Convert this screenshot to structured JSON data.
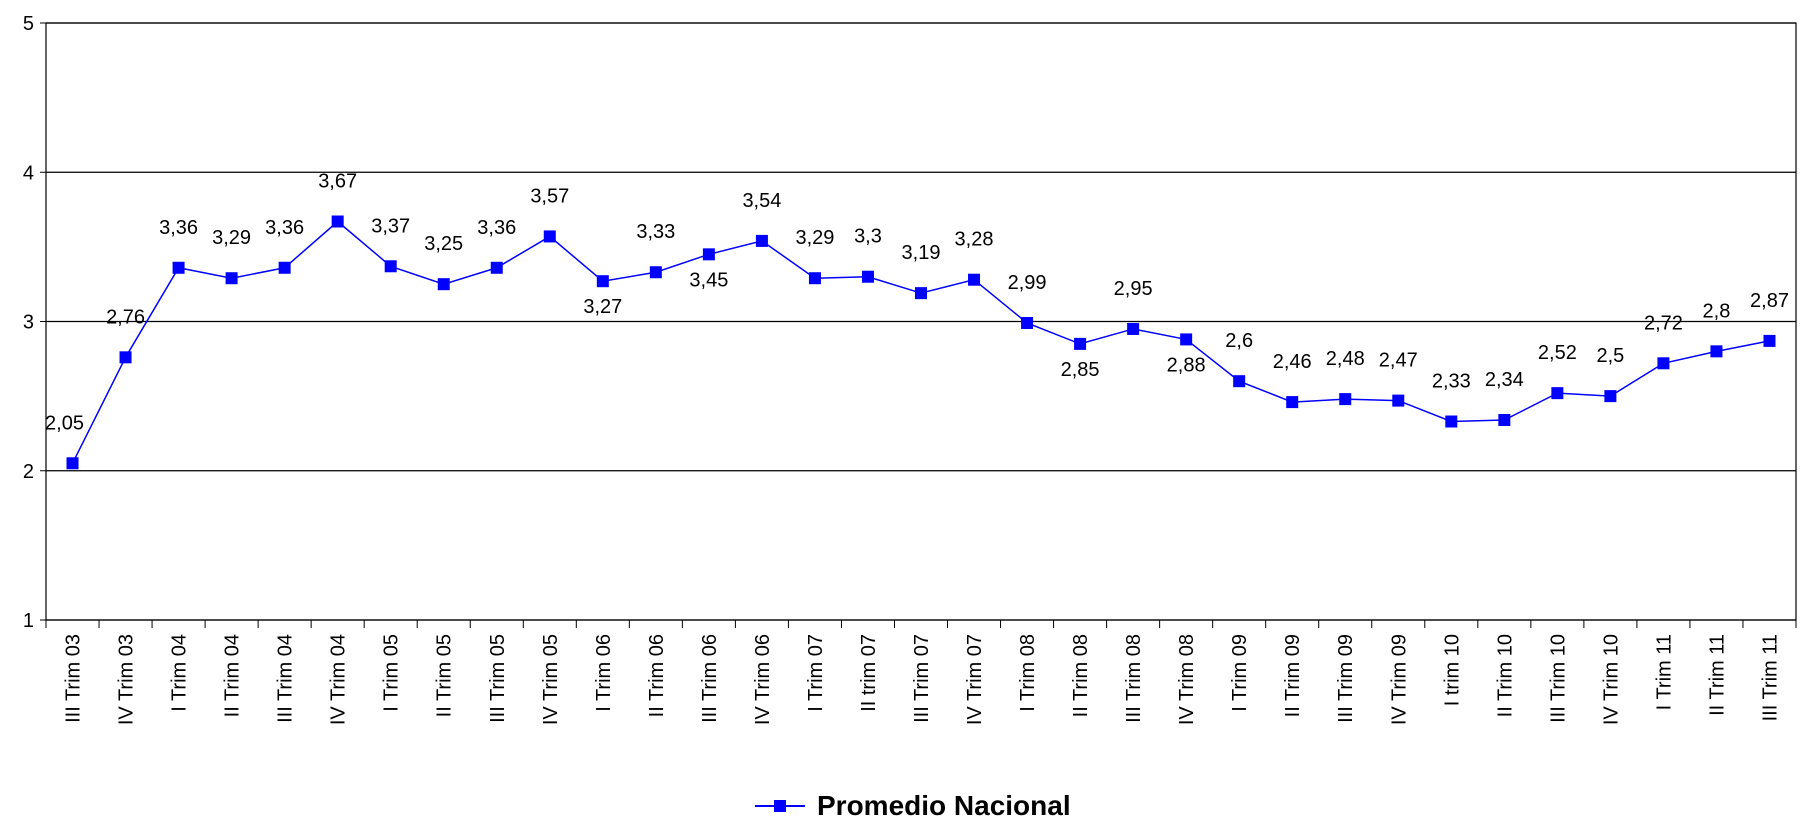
{
  "chart_data": {
    "type": "line",
    "categories": [
      "III Trim 03",
      "IV Trim 03",
      "I Trim 04",
      "II Trim 04",
      "III Trim 04",
      "IV Trim 04",
      "I Trim 05",
      "II Trim 05",
      "III Trim 05",
      "IV Trim 05",
      "I Trim 06",
      "II Trim 06",
      "III Trim 06",
      "IV Trim 06",
      "I Trim 07",
      "II trim 07",
      "III Trim 07",
      "IV Trim 07",
      "I Trim 08",
      "II Trim 08",
      "III Trim 08",
      "IV Trim 08",
      "I Trim 09",
      "II Trim 09",
      "III Trim 09",
      "IV Trim 09",
      "I trim 10",
      "II Trim 10",
      "III Trim 10",
      "IV Trim 10",
      "I Trim 11",
      "II Trim 11",
      "III Trim 11"
    ],
    "series": [
      {
        "name": "Promedio Nacional",
        "color": "#0000ff",
        "values": [
          2.05,
          2.76,
          3.36,
          3.29,
          3.36,
          3.67,
          3.37,
          3.25,
          3.36,
          3.57,
          3.27,
          3.33,
          3.45,
          3.54,
          3.29,
          3.3,
          3.19,
          3.28,
          2.99,
          2.85,
          2.95,
          2.88,
          2.6,
          2.46,
          2.48,
          2.47,
          2.33,
          2.34,
          2.52,
          2.5,
          2.72,
          2.8,
          2.87
        ],
        "value_labels": [
          "2,05",
          "2,76",
          "3,36",
          "3,29",
          "3,36",
          "3,67",
          "3,37",
          "3,25",
          "3,36",
          "3,57",
          "3,27",
          "3,33",
          "3,45",
          "3,54",
          "3,29",
          "3,3",
          "3,19",
          "3,28",
          "2,99",
          "2,85",
          "2,95",
          "2,88",
          "2,6",
          "2,46",
          "2,48",
          "2,47",
          "2,33",
          "2,34",
          "2,52",
          "2,5",
          "2,72",
          "2,8",
          "2,87"
        ]
      }
    ],
    "ylim": [
      1,
      5
    ],
    "yticks": [
      1,
      2,
      3,
      4,
      5
    ],
    "grid": true,
    "legend": "bottom"
  }
}
